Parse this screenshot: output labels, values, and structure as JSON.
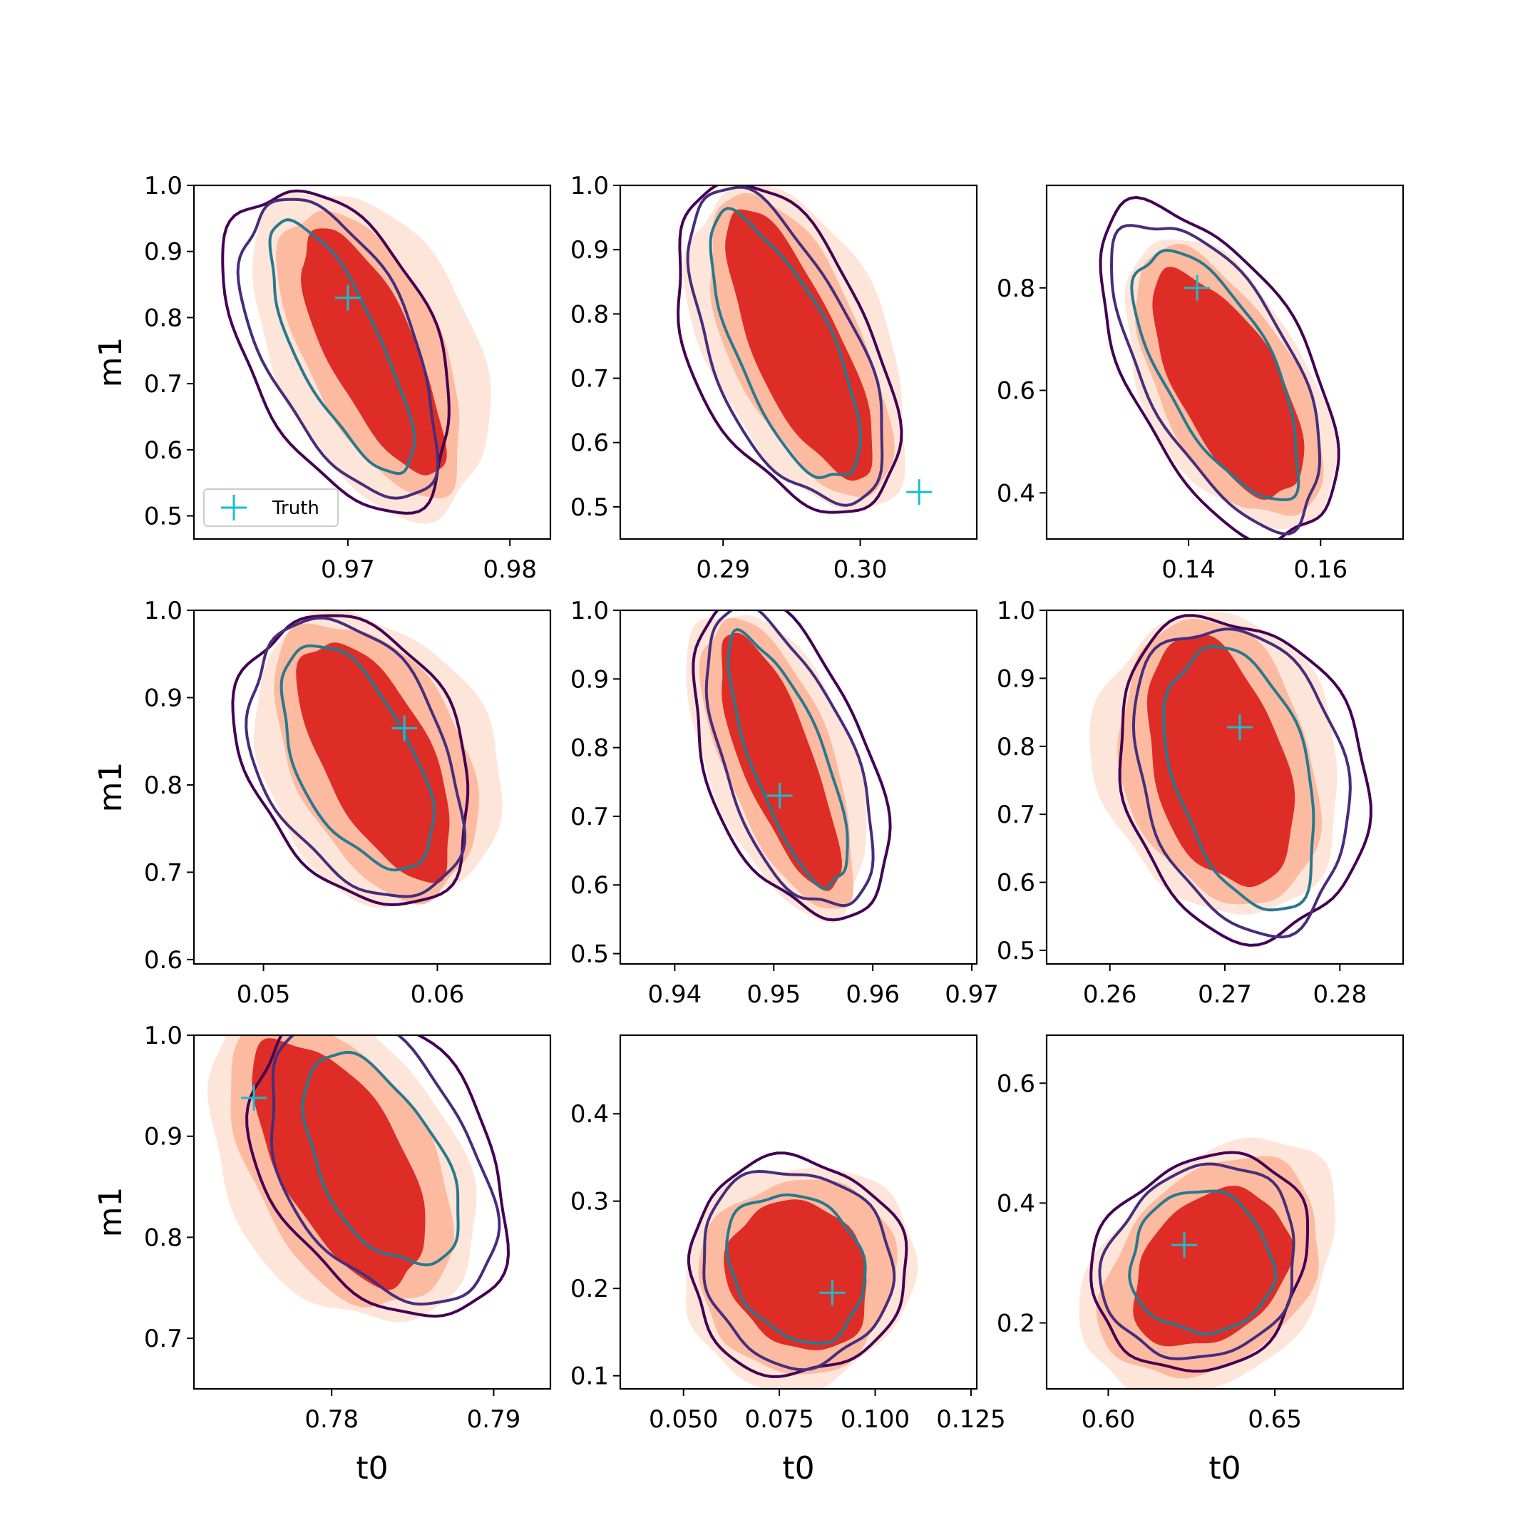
{
  "colors": {
    "filled_outer": "#fee5d9",
    "filled_mid": "#fcbba1",
    "filled_inner": "#de2d26",
    "contour_outer": "#440154",
    "contour_mid": "#472d7b",
    "contour_inner": "#2a788e",
    "truth": "#17becf"
  },
  "legend": {
    "label": "Truth"
  },
  "chart_data": [
    {
      "type": "contour",
      "xlabel": "",
      "ylabel": "m1",
      "xlim": [
        0.9605,
        0.9825
      ],
      "ylim": [
        0.465,
        1.0
      ],
      "xticks": [
        0.97,
        0.98
      ],
      "xtick_labels": [
        "0.97",
        "0.98"
      ],
      "yticks": [
        0.5,
        0.6,
        0.7,
        0.8,
        0.9,
        1.0
      ],
      "ytick_labels": [
        "0.5",
        "0.6",
        "0.7",
        "0.8",
        "0.9",
        "1.0"
      ],
      "truth": [
        0.97,
        0.83
      ],
      "angle": 1.12,
      "legend": true,
      "filled": {
        "center": [
          0.9715,
          0.75
        ],
        "widths": [
          0.0062,
          0.0042,
          0.0027
        ],
        "heights": [
          0.265,
          0.235,
          0.205
        ]
      },
      "lines": {
        "center": [
          0.9695,
          0.755
        ],
        "widths": [
          0.0058,
          0.0046,
          0.0026
        ],
        "heights": [
          0.26,
          0.245,
          0.21
        ]
      }
    },
    {
      "type": "contour",
      "xlabel": "",
      "ylabel": "",
      "xlim": [
        0.2825,
        0.3085
      ],
      "ylim": [
        0.45,
        1.0
      ],
      "xticks": [
        0.29,
        0.3
      ],
      "xtick_labels": [
        "0.29",
        "0.30"
      ],
      "yticks": [
        0.5,
        0.6,
        0.7,
        0.8,
        0.9,
        1.0
      ],
      "ytick_labels": [
        "0.5",
        "0.6",
        "0.7",
        "0.8",
        "0.9",
        "1.0"
      ],
      "truth": [
        0.3043,
        0.523
      ],
      "angle": 1.14,
      "legend": false,
      "filled": {
        "center": [
          0.2955,
          0.75
        ],
        "widths": [
          0.0066,
          0.0048,
          0.0032
        ],
        "heights": [
          0.27,
          0.255,
          0.23
        ]
      },
      "lines": {
        "center": [
          0.2945,
          0.745
        ],
        "widths": [
          0.0066,
          0.0053,
          0.0035
        ],
        "heights": [
          0.275,
          0.265,
          0.225
        ]
      }
    },
    {
      "type": "contour",
      "xlabel": "",
      "ylabel": "",
      "xlim": [
        0.1185,
        0.1725
      ],
      "ylim": [
        0.31,
        1.0
      ],
      "xticks": [
        0.14,
        0.16
      ],
      "xtick_labels": [
        "0.14",
        "0.16"
      ],
      "yticks": [
        0.4,
        0.6,
        0.8
      ],
      "ytick_labels": [
        "0.4",
        "0.6",
        "0.8"
      ],
      "truth": [
        0.1413,
        0.8
      ],
      "angle": 1.07,
      "legend": false,
      "filled": {
        "center": [
          0.146,
          0.61
        ],
        "widths": [
          0.0125,
          0.0105,
          0.0078
        ],
        "heights": [
          0.31,
          0.29,
          0.245
        ]
      },
      "lines": {
        "center": [
          0.1445,
          0.635
        ],
        "widths": [
          0.0135,
          0.0112,
          0.0083
        ],
        "heights": [
          0.36,
          0.33,
          0.27
        ]
      }
    },
    {
      "type": "contour",
      "xlabel": "",
      "ylabel": "m1",
      "xlim": [
        0.046,
        0.0665
      ],
      "ylim": [
        0.595,
        1.0
      ],
      "xticks": [
        0.05,
        0.06
      ],
      "xtick_labels": [
        "0.05",
        "0.06"
      ],
      "yticks": [
        0.6,
        0.7,
        0.8,
        0.9,
        1.0
      ],
      "ytick_labels": [
        "0.6",
        "0.7",
        "0.8",
        "0.9",
        "1.0"
      ],
      "truth": [
        0.0581,
        0.865
      ],
      "angle": 1.1,
      "legend": false,
      "filled": {
        "center": [
          0.0565,
          0.83
        ],
        "widths": [
          0.0066,
          0.0049,
          0.0031
        ],
        "heights": [
          0.175,
          0.17,
          0.15
        ]
      },
      "lines": {
        "center": [
          0.0553,
          0.83
        ],
        "widths": [
          0.0061,
          0.0053,
          0.0033
        ],
        "heights": [
          0.175,
          0.17,
          0.14
        ]
      }
    },
    {
      "type": "contour",
      "xlabel": "",
      "ylabel": "",
      "xlim": [
        0.9345,
        0.9705
      ],
      "ylim": [
        0.485,
        1.0
      ],
      "xticks": [
        0.94,
        0.95,
        0.96,
        0.97
      ],
      "xtick_labels": [
        "0.94",
        "0.95",
        "0.96",
        "0.97"
      ],
      "yticks": [
        0.5,
        0.6,
        0.7,
        0.8,
        0.9,
        1.0
      ],
      "ytick_labels": [
        "0.5",
        "0.6",
        "0.7",
        "0.8",
        "0.9",
        "1.0"
      ],
      "truth": [
        0.9506,
        0.73
      ],
      "angle": 1.2,
      "legend": false,
      "filled": {
        "center": [
          0.9505,
          0.78
        ],
        "widths": [
          0.0074,
          0.0055,
          0.0036
        ],
        "heights": [
          0.235,
          0.225,
          0.2
        ]
      },
      "lines": {
        "center": [
          0.9515,
          0.78
        ],
        "widths": [
          0.0082,
          0.0065,
          0.0037
        ],
        "heights": [
          0.245,
          0.23,
          0.195
        ]
      }
    },
    {
      "type": "contour",
      "xlabel": "",
      "ylabel": "",
      "xlim": [
        0.2545,
        0.2855
      ],
      "ylim": [
        0.48,
        1.0
      ],
      "xticks": [
        0.26,
        0.27,
        0.28
      ],
      "xtick_labels": [
        "0.26",
        "0.27",
        "0.28"
      ],
      "yticks": [
        0.5,
        0.6,
        0.7,
        0.8,
        0.9,
        1.0
      ],
      "ytick_labels": [
        "0.5",
        "0.6",
        "0.7",
        "0.8",
        "0.9",
        "1.0"
      ],
      "truth": [
        0.2713,
        0.828
      ],
      "angle": 1.28,
      "legend": false,
      "filled": {
        "center": [
          0.2695,
          0.775
        ],
        "widths": [
          0.0105,
          0.0082,
          0.0057
        ],
        "heights": [
          0.225,
          0.215,
          0.19
        ]
      },
      "lines": {
        "center": [
          0.2715,
          0.755
        ],
        "widths": [
          0.0105,
          0.0088,
          0.0058
        ],
        "heights": [
          0.24,
          0.23,
          0.2
        ]
      }
    },
    {
      "type": "contour",
      "xlabel": "t0",
      "ylabel": "m1",
      "xlim": [
        0.7715,
        0.7935
      ],
      "ylim": [
        0.65,
        1.0
      ],
      "xticks": [
        0.78,
        0.79
      ],
      "xtick_labels": [
        "0.78",
        "0.79"
      ],
      "yticks": [
        0.7,
        0.8,
        0.9,
        1.0
      ],
      "ytick_labels": [
        "0.7",
        "0.8",
        "0.9",
        "1.0"
      ],
      "truth": [
        0.7752,
        0.938
      ],
      "angle": 1.05,
      "legend": false,
      "filled": {
        "center": [
          0.7805,
          0.875
        ],
        "widths": [
          0.0071,
          0.0055,
          0.0038
        ],
        "heights": [
          0.175,
          0.16,
          0.135
        ]
      },
      "lines": {
        "center": [
          0.783,
          0.875
        ],
        "widths": [
          0.0069,
          0.0058,
          0.0037
        ],
        "heights": [
          0.165,
          0.155,
          0.115
        ]
      }
    },
    {
      "type": "contour",
      "xlabel": "t0",
      "ylabel": "",
      "xlim": [
        0.0335,
        0.1265
      ],
      "ylim": [
        0.085,
        0.49
      ],
      "xticks": [
        0.05,
        0.075,
        0.1,
        0.125
      ],
      "xtick_labels": [
        "0.050",
        "0.075",
        "0.100",
        "0.125"
      ],
      "yticks": [
        0.1,
        0.2,
        0.3,
        0.4
      ],
      "ytick_labels": [
        "0.1",
        "0.2",
        "0.3",
        "0.4"
      ],
      "truth": [
        0.0888,
        0.195
      ],
      "angle": 0.95,
      "legend": false,
      "filled": {
        "center": [
          0.08,
          0.215
        ],
        "widths": [
          0.031,
          0.026,
          0.0175
        ],
        "heights": [
          0.125,
          0.11,
          0.09
        ]
      },
      "lines": {
        "center": [
          0.0795,
          0.225
        ],
        "widths": [
          0.028,
          0.024,
          0.0165
        ],
        "heights": [
          0.125,
          0.115,
          0.09
        ]
      }
    },
    {
      "type": "contour",
      "xlabel": "t0",
      "ylabel": "",
      "xlim": [
        0.5815,
        0.6885
      ],
      "ylim": [
        0.09,
        0.68
      ],
      "xticks": [
        0.6,
        0.65
      ],
      "xtick_labels": [
        "0.60",
        "0.65"
      ],
      "yticks": [
        0.2,
        0.4,
        0.6
      ],
      "ytick_labels": [
        "0.2",
        "0.4",
        "0.6"
      ],
      "truth": [
        0.6228,
        0.33
      ],
      "angle": 0.78,
      "legend": false,
      "filled": {
        "center": [
          0.631,
          0.29
        ],
        "widths": [
          0.045,
          0.038,
          0.027
        ],
        "heights": [
          0.17,
          0.15,
          0.11
        ]
      },
      "lines": {
        "center": [
          0.628,
          0.3
        ],
        "widths": [
          0.035,
          0.031,
          0.021
        ],
        "heights": [
          0.165,
          0.15,
          0.12
        ]
      }
    }
  ]
}
